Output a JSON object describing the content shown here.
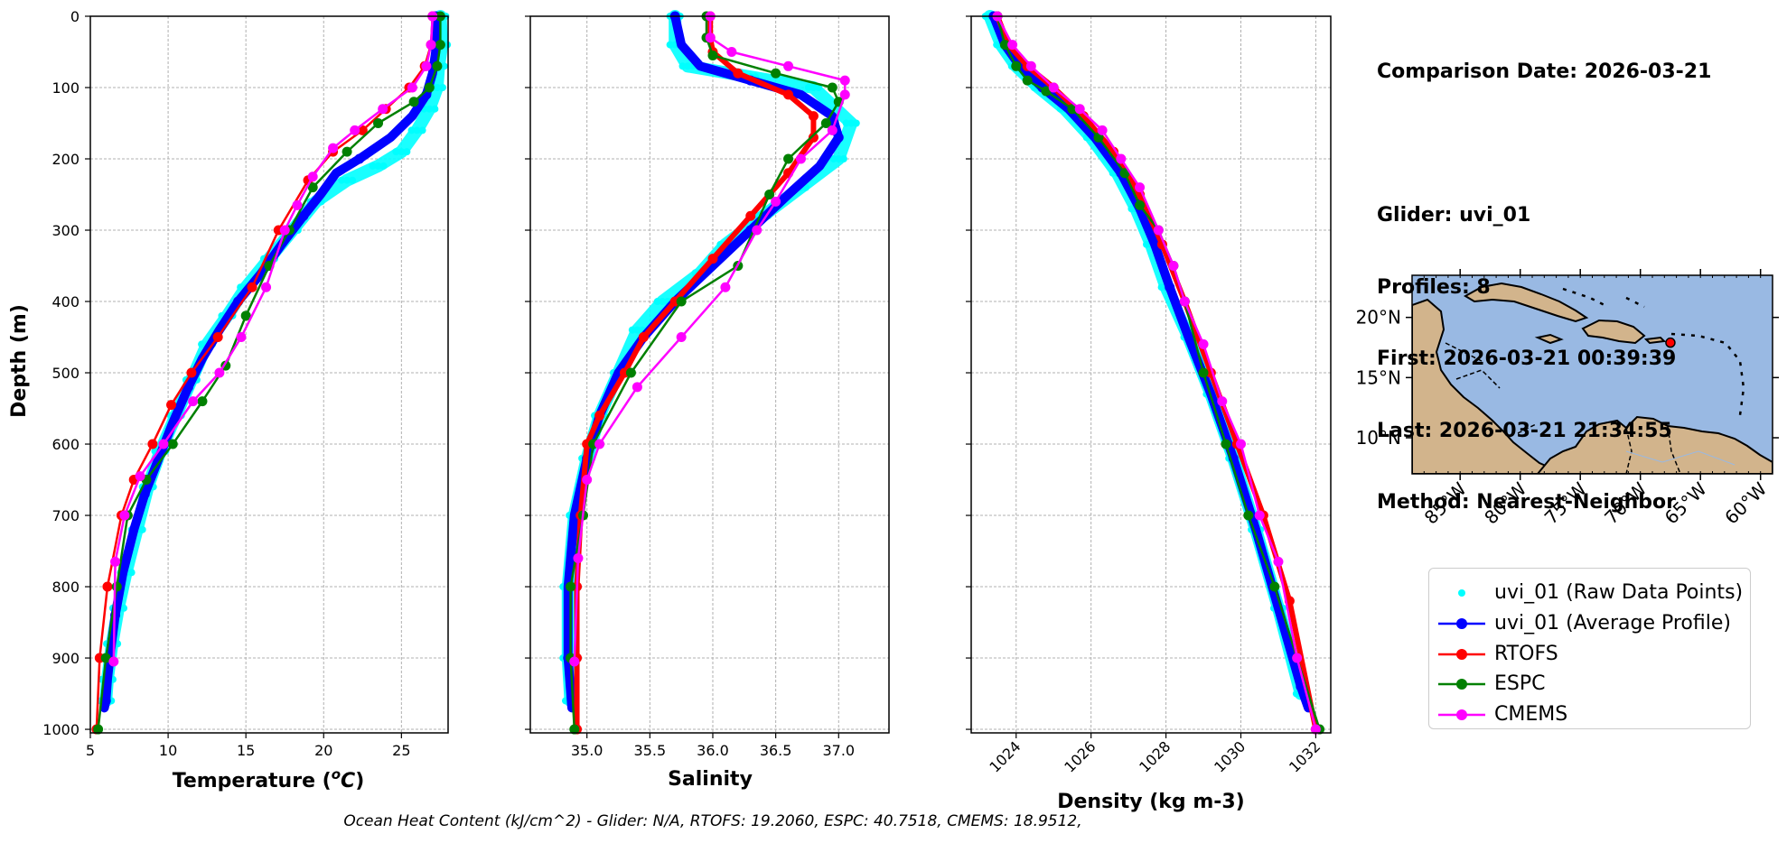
{
  "info": {
    "comparison_date": "Comparison Date: 2026-03-21",
    "glider": "Glider: uvi_01",
    "profiles": "Profiles: 8",
    "first": "First: 2026-03-21 00:39:39",
    "last": "Last: 2026-03-21 21:34:55",
    "method": "Method: Nearest-Neighbor"
  },
  "footer_text": "Ocean Heat Content (kJ/cm^2) - Glider: N/A,  RTOFS: 19.2060,  ESPC: 40.7518,  CMEMS: 18.9512,",
  "colors": {
    "raw": "#00ffff",
    "average": "#0000ff",
    "rtofs": "#ff0000",
    "espc": "#008000",
    "cmems": "#ff00ff",
    "ocean": "#99b9e3",
    "land": "#d2b48c"
  },
  "legend": [
    {
      "key": "raw",
      "label": "uvi_01 (Raw Data Points)"
    },
    {
      "key": "average",
      "label": "uvi_01 (Average Profile)"
    },
    {
      "key": "rtofs",
      "label": "RTOFS"
    },
    {
      "key": "espc",
      "label": "ESPC"
    },
    {
      "key": "cmems",
      "label": "CMEMS"
    }
  ],
  "chart_data": [
    {
      "type": "line",
      "xlabel": "Temperature (°C)",
      "ylabel": "Depth (m)",
      "xlim": [
        5,
        28
      ],
      "ylim": [
        1005,
        0
      ],
      "xticks": [
        5,
        10,
        15,
        20,
        25
      ],
      "yticks": [
        0,
        100,
        200,
        300,
        400,
        500,
        600,
        700,
        800,
        900,
        1000
      ],
      "grid": true,
      "series": [
        {
          "name": "uvi_01 (Raw Data Points)",
          "key": "raw",
          "style": "points",
          "x": [
            27.5,
            27.6,
            27.4,
            27.3,
            26.8,
            26.0,
            25.0,
            23.5,
            21.5,
            19.5,
            18.0,
            16.5,
            15.0,
            13.8,
            12.5,
            11.5,
            10.5,
            9.5,
            8.7,
            8.0,
            7.3,
            6.8,
            6.4,
            6.1,
            6.0
          ],
          "y": [
            0,
            40,
            70,
            100,
            130,
            160,
            190,
            210,
            230,
            260,
            300,
            340,
            380,
            420,
            460,
            510,
            560,
            610,
            660,
            720,
            780,
            830,
            880,
            930,
            960
          ]
        },
        {
          "name": "uvi_01 (Average Profile)",
          "key": "average",
          "style": "thick",
          "x": [
            27.2,
            27.2,
            27.0,
            26.6,
            25.7,
            24.3,
            22.3,
            20.8,
            19.8,
            18.7,
            17.3,
            16.0,
            14.5,
            13.3,
            12.2,
            11.3,
            10.3,
            9.4,
            8.5,
            7.8,
            7.1,
            6.6,
            6.3,
            6.1,
            6.0,
            5.9
          ],
          "y": [
            0,
            50,
            80,
            110,
            140,
            170,
            200,
            220,
            250,
            280,
            320,
            360,
            400,
            440,
            480,
            520,
            570,
            620,
            670,
            720,
            780,
            840,
            890,
            930,
            960,
            970
          ]
        },
        {
          "name": "RTOFS",
          "key": "rtofs",
          "style": "line",
          "x": [
            27.0,
            26.9,
            26.5,
            25.5,
            24.0,
            22.5,
            20.6,
            19.0,
            17.1,
            15.4,
            13.2,
            11.5,
            10.2,
            9.0,
            7.8,
            7.0,
            6.1,
            5.6,
            5.4
          ],
          "y": [
            0,
            40,
            70,
            100,
            130,
            160,
            190,
            230,
            300,
            380,
            450,
            500,
            545,
            600,
            650,
            700,
            800,
            900,
            1000
          ]
        },
        {
          "name": "ESPC",
          "key": "espc",
          "style": "line",
          "x": [
            27.5,
            27.5,
            27.3,
            26.8,
            25.8,
            23.5,
            21.5,
            19.3,
            17.8,
            16.5,
            15.0,
            13.7,
            12.2,
            10.3,
            8.6,
            7.4,
            6.7,
            6.0,
            5.5
          ],
          "y": [
            0,
            40,
            70,
            100,
            120,
            150,
            190,
            240,
            300,
            350,
            420,
            490,
            540,
            600,
            650,
            700,
            800,
            900,
            1000
          ]
        },
        {
          "name": "CMEMS",
          "key": "cmems",
          "style": "line",
          "x": [
            27.0,
            26.9,
            26.6,
            25.7,
            23.8,
            22.0,
            20.6,
            19.3,
            18.3,
            17.5,
            16.3,
            14.7,
            13.3,
            11.6,
            9.7,
            8.2,
            7.2,
            6.6,
            6.5
          ],
          "y": [
            0,
            40,
            70,
            100,
            130,
            160,
            185,
            225,
            265,
            300,
            380,
            450,
            500,
            540,
            600,
            645,
            700,
            765,
            905
          ]
        }
      ]
    },
    {
      "type": "line",
      "xlabel": "Salinity",
      "xlim": [
        34.55,
        37.4
      ],
      "ylim": [
        1005,
        0
      ],
      "xticks": [
        35.0,
        35.5,
        36.0,
        36.5,
        37.0
      ],
      "grid": true,
      "series": [
        {
          "name": "uvi_01 (Raw Data Points)",
          "key": "raw",
          "style": "points",
          "x": [
            35.7,
            35.7,
            35.8,
            36.3,
            36.8,
            37.1,
            37.0,
            36.7,
            36.4,
            36.1,
            35.9,
            35.6,
            35.4,
            35.25,
            35.1,
            35.0,
            34.9,
            34.85,
            34.85,
            34.87
          ],
          "y": [
            0,
            40,
            70,
            85,
            100,
            150,
            200,
            240,
            280,
            320,
            360,
            400,
            440,
            500,
            560,
            620,
            700,
            800,
            900,
            960
          ]
        },
        {
          "name": "uvi_01 (Average Profile)",
          "key": "average",
          "style": "thick",
          "x": [
            35.7,
            35.75,
            35.9,
            36.3,
            36.7,
            36.95,
            37.0,
            36.85,
            36.6,
            36.3,
            36.0,
            35.7,
            35.45,
            35.25,
            35.1,
            35.0,
            34.9,
            34.85,
            34.85,
            34.88
          ],
          "y": [
            0,
            40,
            70,
            90,
            110,
            140,
            170,
            210,
            250,
            300,
            350,
            400,
            450,
            500,
            560,
            620,
            700,
            800,
            900,
            970
          ]
        },
        {
          "name": "RTOFS",
          "key": "rtofs",
          "style": "line",
          "x": [
            35.98,
            35.98,
            36.0,
            36.2,
            36.6,
            36.8,
            36.8,
            36.6,
            36.3,
            36.0,
            35.7,
            35.45,
            35.3,
            35.1,
            35.0,
            34.95,
            34.92,
            34.92,
            34.92
          ],
          "y": [
            0,
            30,
            50,
            80,
            110,
            140,
            170,
            220,
            280,
            340,
            400,
            450,
            500,
            560,
            600,
            700,
            800,
            900,
            1000
          ]
        },
        {
          "name": "ESPC",
          "key": "espc",
          "style": "line",
          "x": [
            35.95,
            35.95,
            36.0,
            36.5,
            36.95,
            37.0,
            36.9,
            36.6,
            36.45,
            36.2,
            35.75,
            35.35,
            35.05,
            34.97,
            34.87,
            34.87,
            34.9
          ],
          "y": [
            0,
            30,
            55,
            80,
            100,
            120,
            150,
            200,
            250,
            350,
            400,
            500,
            600,
            700,
            800,
            900,
            1000
          ]
        },
        {
          "name": "CMEMS",
          "key": "cmems",
          "style": "line",
          "x": [
            35.98,
            35.98,
            36.15,
            36.6,
            37.05,
            37.05,
            36.95,
            36.7,
            36.5,
            36.35,
            36.1,
            35.75,
            35.4,
            35.1,
            35.0,
            34.93,
            34.9
          ],
          "y": [
            0,
            30,
            50,
            70,
            90,
            110,
            160,
            200,
            260,
            300,
            380,
            450,
            520,
            600,
            650,
            760,
            905
          ]
        }
      ]
    },
    {
      "type": "line",
      "xlabel": "Density (kg m-3)",
      "xlim": [
        1022.8,
        1032.4
      ],
      "ylim": [
        1005,
        0
      ],
      "xticks": [
        1024,
        1026,
        1028,
        1030,
        1032
      ],
      "grid": true,
      "series": [
        {
          "name": "uvi_01 (Raw Data Points)",
          "key": "raw",
          "style": "points",
          "x": [
            1023.3,
            1023.6,
            1024.0,
            1024.6,
            1025.3,
            1026.0,
            1026.7,
            1027.2,
            1027.6,
            1028.0,
            1028.6,
            1029.2,
            1029.8,
            1030.4,
            1031.0,
            1031.6
          ],
          "y": [
            0,
            40,
            70,
            100,
            130,
            170,
            220,
            270,
            320,
            380,
            450,
            530,
            620,
            720,
            830,
            950
          ]
        },
        {
          "name": "uvi_01 (Average Profile)",
          "key": "average",
          "style": "thick",
          "x": [
            1023.4,
            1023.7,
            1024.1,
            1024.7,
            1025.4,
            1026.1,
            1026.8,
            1027.3,
            1027.7,
            1028.1,
            1028.6,
            1029.2,
            1029.8,
            1030.4,
            1031.0,
            1031.6,
            1031.8
          ],
          "y": [
            0,
            40,
            70,
            100,
            130,
            170,
            220,
            270,
            320,
            380,
            450,
            530,
            620,
            720,
            830,
            940,
            970
          ]
        },
        {
          "name": "RTOFS",
          "key": "rtofs",
          "style": "line",
          "x": [
            1023.5,
            1023.8,
            1024.3,
            1025.0,
            1025.8,
            1026.6,
            1027.3,
            1027.9,
            1028.5,
            1029.2,
            1029.9,
            1030.6,
            1031.3,
            1032.0
          ],
          "y": [
            0,
            40,
            70,
            100,
            140,
            190,
            250,
            320,
            400,
            500,
            600,
            700,
            820,
            1000
          ]
        },
        {
          "name": "ESPC",
          "key": "espc",
          "style": "line",
          "x": [
            1023.5,
            1023.7,
            1024.0,
            1024.3,
            1024.8,
            1025.5,
            1026.2,
            1026.9,
            1027.3,
            1027.8,
            1028.2,
            1028.5,
            1029.0,
            1029.6,
            1030.2,
            1030.9,
            1031.5,
            1032.1
          ],
          "y": [
            0,
            40,
            70,
            90,
            105,
            130,
            170,
            220,
            265,
            300,
            350,
            400,
            500,
            600,
            700,
            800,
            900,
            1000
          ]
        },
        {
          "name": "CMEMS",
          "key": "cmems",
          "style": "line",
          "x": [
            1023.5,
            1023.9,
            1024.4,
            1025.0,
            1025.7,
            1026.3,
            1026.8,
            1027.3,
            1027.8,
            1028.2,
            1028.5,
            1029.0,
            1029.5,
            1030.0,
            1030.5,
            1031.0,
            1031.5,
            1032.0
          ],
          "y": [
            0,
            40,
            70,
            100,
            130,
            160,
            200,
            240,
            300,
            350,
            400,
            460,
            540,
            600,
            700,
            765,
            900,
            1000
          ]
        }
      ]
    },
    {
      "type": "map",
      "lon_range": [
        -89,
        -59
      ],
      "lat_range": [
        7,
        23.5
      ],
      "lon_ticks": [
        -85,
        -80,
        -75,
        -70,
        -65,
        -60
      ],
      "lat_ticks": [
        10,
        15,
        20
      ],
      "lon_tick_labels": [
        "85°W",
        "80°W",
        "75°W",
        "70°W",
        "65°W",
        "60°W"
      ],
      "lat_tick_labels": [
        "10°N",
        "15°N",
        "20°N"
      ],
      "glider_position": {
        "lon": -67.5,
        "lat": 17.9
      }
    }
  ]
}
